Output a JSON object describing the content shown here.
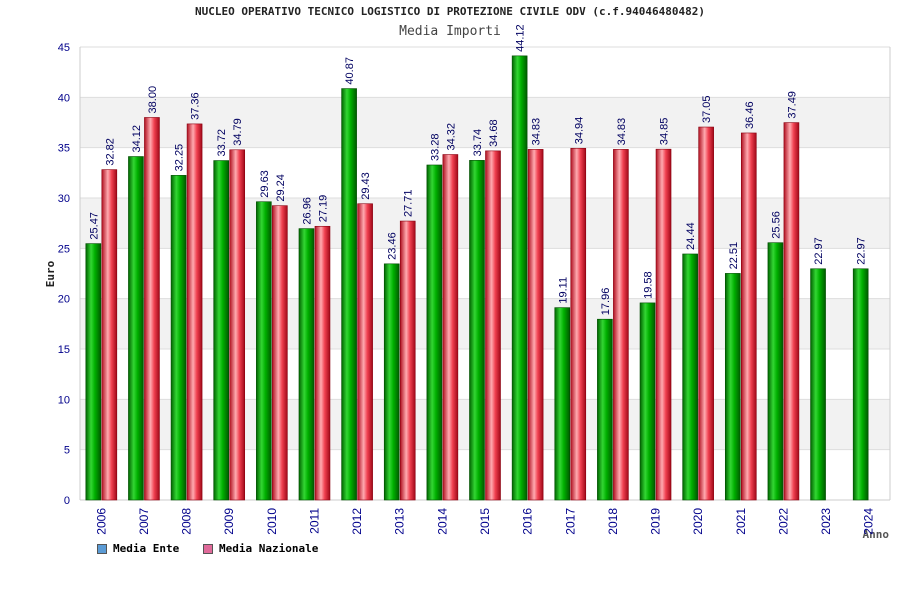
{
  "chart_data": {
    "type": "bar",
    "title": "NUCLEO OPERATIVO TECNICO LOGISTICO DI PROTEZIONE CIVILE ODV (c.f.94046480482)",
    "subtitle": "Media Importi",
    "ylabel": "Euro",
    "xlabel": "Anno",
    "ylim": [
      0,
      45
    ],
    "yticks": [
      0,
      5,
      10,
      15,
      20,
      25,
      30,
      35,
      40,
      45
    ],
    "categories": [
      "2006",
      "2007",
      "2008",
      "2009",
      "2010",
      "2011",
      "2012",
      "2013",
      "2014",
      "2015",
      "2016",
      "2017",
      "2018",
      "2019",
      "2020",
      "2021",
      "2022",
      "2023",
      "2024"
    ],
    "series": [
      {
        "name": "Media Ente",
        "color": "#00a000",
        "legend_color": "#5b9bd5",
        "values": [
          25.47,
          34.12,
          32.25,
          33.72,
          29.63,
          26.96,
          40.87,
          23.46,
          33.28,
          33.74,
          44.12,
          19.11,
          17.96,
          19.58,
          24.44,
          22.51,
          25.56,
          22.97,
          22.97
        ],
        "labels": [
          "25.47",
          "34.12",
          "32.25",
          "33.72",
          "29.63",
          "26.96",
          "40.87",
          "23.46",
          "33.28",
          "33.74",
          "44.12",
          "19.11",
          "17.96",
          "19.58",
          "24.44",
          "22.51",
          "25.56",
          "22.97",
          "22.97"
        ]
      },
      {
        "name": "Media Nazionale",
        "color": "#e0202a",
        "legend_color": "#e06a9a",
        "values": [
          32.82,
          38.0,
          37.36,
          34.79,
          29.24,
          27.19,
          29.43,
          27.71,
          34.32,
          34.68,
          34.83,
          34.94,
          34.83,
          34.85,
          37.05,
          36.46,
          37.49,
          null,
          null
        ],
        "labels": [
          "32.82",
          "38.00",
          "37.36",
          "34.79",
          "29.24",
          "27.19",
          "29.43",
          "27.71",
          "34.32",
          "34.68",
          "34.83",
          "34.94",
          "34.83",
          "34.85",
          "37.05",
          "36.46",
          "37.49",
          "",
          ""
        ]
      }
    ],
    "grid": true,
    "legend_position": "bottom-left",
    "colors": {
      "axis_text": "#00008b",
      "label_text": "#000060",
      "band": "#f2f2f2",
      "grid": "#dddddd"
    }
  }
}
